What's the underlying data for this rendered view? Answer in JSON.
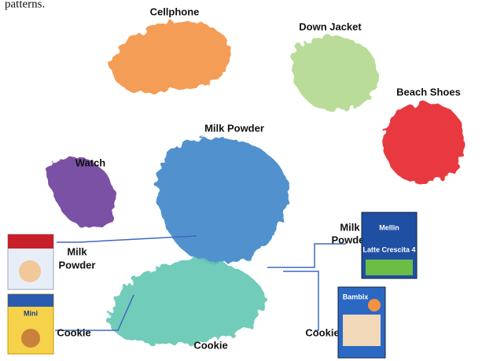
{
  "caption_fragment": "patterns.",
  "clusters": [
    {
      "label": "Cellphone",
      "color": "#f39243"
    },
    {
      "label": "Down Jacket",
      "color": "#b2d88e"
    },
    {
      "label": "Beach Shoes",
      "color": "#e6262b"
    },
    {
      "label": "Milk Powder",
      "color": "#3f86c9"
    },
    {
      "label": "Watch",
      "color": "#6b3f9b"
    },
    {
      "label": "Cookie",
      "color": "#63c7b2"
    }
  ],
  "annotations": {
    "left_milk": [
      "Milk",
      "Powder"
    ],
    "left_cookie": "Cookie",
    "right_milk": [
      "Milk",
      "Powder"
    ],
    "right_cookie": "Cookie"
  },
  "products": {
    "mellin": {
      "brand": "Mellin",
      "line": "Latte Crescita 4"
    },
    "bambix": {
      "brand": "Bambix"
    },
    "left_cookie": {
      "brand": "Mini"
    }
  }
}
